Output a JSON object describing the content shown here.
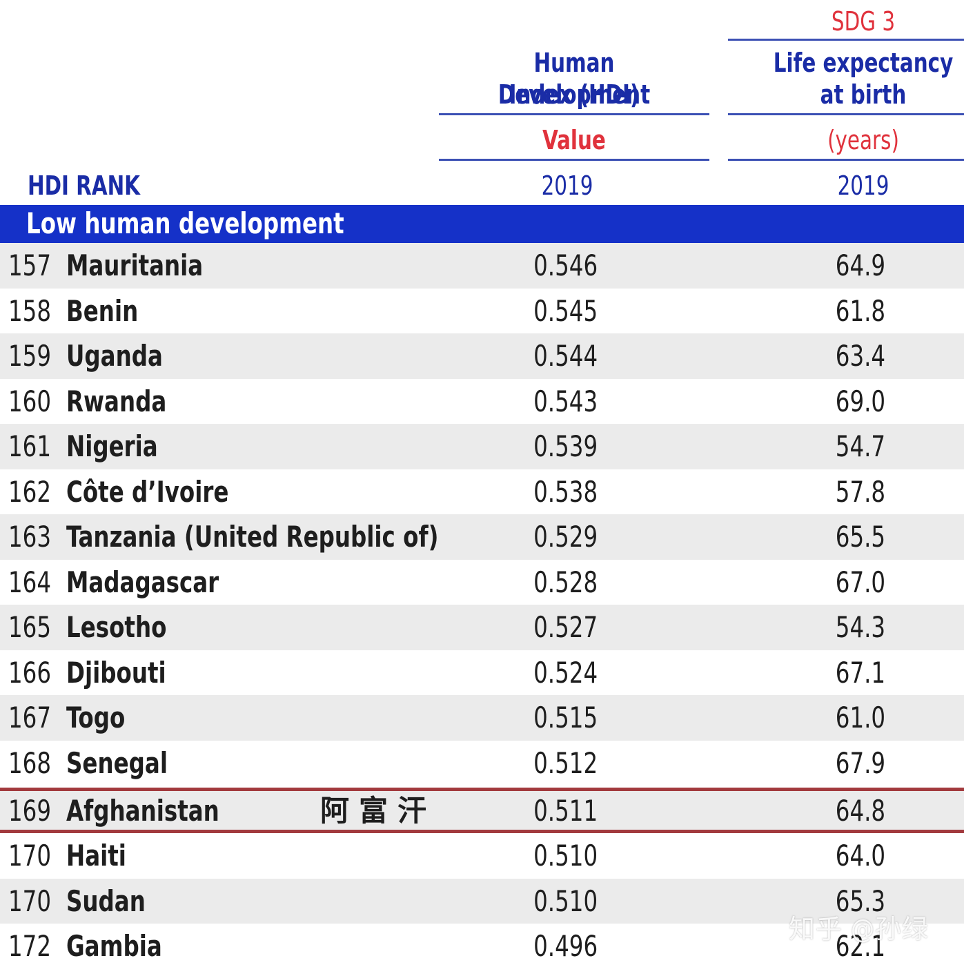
{
  "header": {
    "sdg_label": "SDG 3",
    "hdi_title_line1": "Human Development",
    "hdi_title_line2": "Index (HDI)",
    "hdi_unit": "Value",
    "hdi_year": "2019",
    "life_title_line1": "Life expectancy",
    "life_title_line2": "at birth",
    "life_unit": "(years)",
    "life_year": "2019",
    "rank_label": "HDI RANK"
  },
  "group_title": "Low human development",
  "rows": [
    {
      "rank": "157",
      "country": "Mauritania",
      "hdi": "0.546",
      "life": "64.9"
    },
    {
      "rank": "158",
      "country": "Benin",
      "hdi": "0.545",
      "life": "61.8"
    },
    {
      "rank": "159",
      "country": "Uganda",
      "hdi": "0.544",
      "life": "63.4"
    },
    {
      "rank": "160",
      "country": "Rwanda",
      "hdi": "0.543",
      "life": "69.0"
    },
    {
      "rank": "161",
      "country": "Nigeria",
      "hdi": "0.539",
      "life": "54.7"
    },
    {
      "rank": "162",
      "country": "Côte d’Ivoire",
      "hdi": "0.538",
      "life": "57.8"
    },
    {
      "rank": "163",
      "country": "Tanzania (United Republic of)",
      "hdi": "0.529",
      "life": "65.5"
    },
    {
      "rank": "164",
      "country": "Madagascar",
      "hdi": "0.528",
      "life": "67.0"
    },
    {
      "rank": "165",
      "country": "Lesotho",
      "hdi": "0.527",
      "life": "54.3"
    },
    {
      "rank": "166",
      "country": "Djibouti",
      "hdi": "0.524",
      "life": "67.1"
    },
    {
      "rank": "167",
      "country": "Togo",
      "hdi": "0.515",
      "life": "61.0"
    },
    {
      "rank": "168",
      "country": "Senegal",
      "hdi": "0.512",
      "life": "67.9"
    },
    {
      "rank": "169",
      "country": "Afghanistan",
      "hdi": "0.511",
      "life": "64.8",
      "annotation": "阿富汗"
    },
    {
      "rank": "170",
      "country": "Haiti",
      "hdi": "0.510",
      "life": "64.0"
    },
    {
      "rank": "170",
      "country": "Sudan",
      "hdi": "0.510",
      "life": "65.3"
    },
    {
      "rank": "172",
      "country": "Gambia",
      "hdi": "0.496",
      "life": "62.1"
    }
  ],
  "watermark": "知乎 @孙绿",
  "colors": {
    "header_blue": "#1a2ca6",
    "header_red": "#e0323c",
    "band_blue": "#1531c8",
    "row_shade": "#ebebeb",
    "highlight_line": "#a23a3e"
  }
}
